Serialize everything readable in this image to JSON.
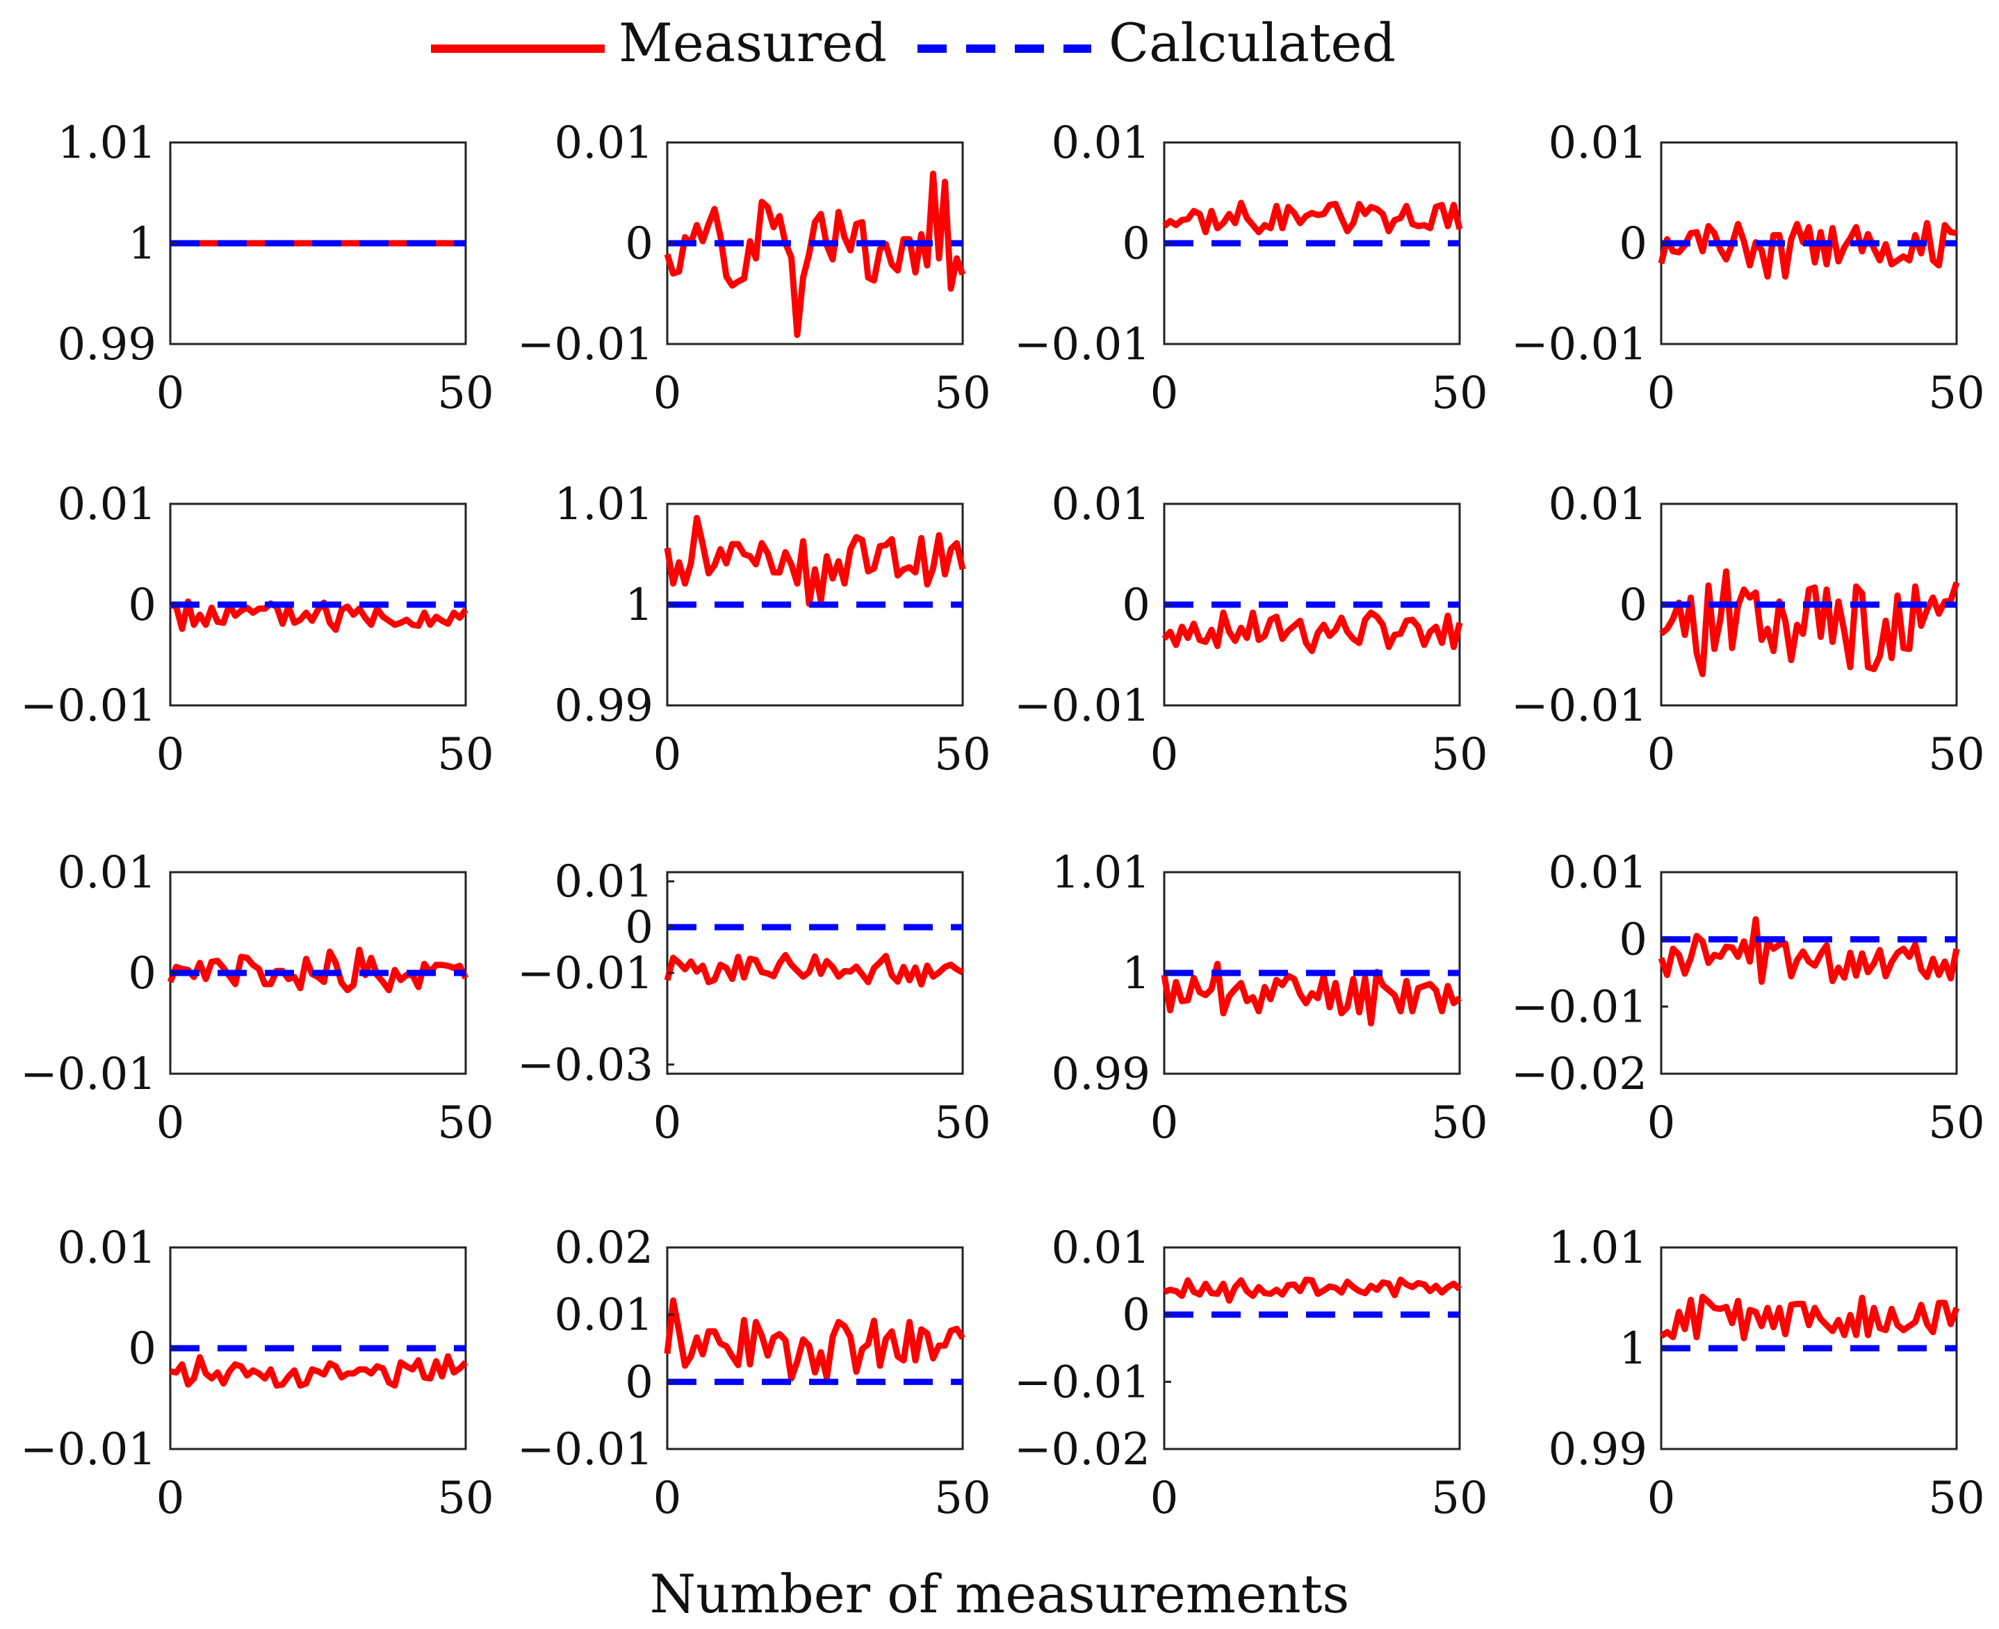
{
  "figure": {
    "xlabel": "Number of measurements",
    "legend": [
      {
        "name": "Measured",
        "color": "#ff0000",
        "style": "solid"
      },
      {
        "name": "Calculated",
        "color": "#0000ff",
        "style": "dashed"
      }
    ]
  },
  "chart_data": [
    {
      "type": "line",
      "xlim": [
        0,
        50
      ],
      "xticks": [
        0,
        50
      ],
      "ylim": [
        0.99,
        1.01
      ],
      "yticks": [
        0.99,
        1,
        1.01
      ],
      "yticklabels": [
        "0.99",
        "1",
        "1.01"
      ],
      "calculated": 1,
      "noise": 0,
      "seed": 1,
      "series": [
        {
          "name": "Measured",
          "values": [
            1,
            1,
            1,
            1,
            1,
            1,
            1,
            1,
            1,
            1,
            1,
            1,
            1,
            1,
            1,
            1,
            1,
            1,
            1,
            1,
            1,
            1,
            1,
            1,
            1,
            1,
            1,
            1,
            1,
            1,
            1,
            1,
            1,
            1,
            1,
            1,
            1,
            1,
            1,
            1,
            1,
            1,
            1,
            1,
            1,
            1,
            1,
            1,
            1,
            1,
            1
          ]
        },
        {
          "name": "Calculated",
          "values": [
            1,
            1
          ]
        }
      ]
    },
    {
      "type": "line",
      "xlim": [
        0,
        50
      ],
      "xticks": [
        0,
        50
      ],
      "ylim": [
        -0.01,
        0.01
      ],
      "yticks": [
        -0.01,
        0,
        0.01
      ],
      "yticklabels": [
        "−0.01",
        "0",
        "0.01"
      ],
      "calculated": 0,
      "noise": 0.0045,
      "seed": 2
    },
    {
      "type": "line",
      "xlim": [
        0,
        50
      ],
      "xticks": [
        0,
        50
      ],
      "ylim": [
        -0.01,
        0.01
      ],
      "yticks": [
        -0.01,
        0,
        0.01
      ],
      "yticklabels": [
        "−0.01",
        "0",
        "0.01"
      ],
      "calculated": 0,
      "base": 0.0025,
      "noise": 0.0015,
      "seed": 3
    },
    {
      "type": "line",
      "xlim": [
        0,
        50
      ],
      "xticks": [
        0,
        50
      ],
      "ylim": [
        -0.01,
        0.01
      ],
      "yticks": [
        -0.01,
        0,
        0.01
      ],
      "yticklabels": [
        "−0.01",
        "0",
        "0.01"
      ],
      "calculated": 0,
      "noise": 0.0022,
      "seed": 4
    },
    {
      "type": "line",
      "xlim": [
        0,
        50
      ],
      "xticks": [
        0,
        50
      ],
      "ylim": [
        -0.01,
        0.01
      ],
      "yticks": [
        -0.01,
        0,
        0.01
      ],
      "yticklabels": [
        "−0.01",
        "0",
        "0.01"
      ],
      "calculated": 0,
      "base": -0.001,
      "noise": 0.0013,
      "seed": 5
    },
    {
      "type": "line",
      "xlim": [
        0,
        50
      ],
      "xticks": [
        0,
        50
      ],
      "ylim": [
        0.99,
        1.01
      ],
      "yticks": [
        0.99,
        1,
        1.01
      ],
      "yticklabels": [
        "0.99",
        "1",
        "1.01"
      ],
      "calculated": 1,
      "base": 1.0045,
      "noise": 0.0025,
      "seed": 6
    },
    {
      "type": "line",
      "xlim": [
        0,
        50
      ],
      "xticks": [
        0,
        50
      ],
      "ylim": [
        -0.01,
        0.01
      ],
      "yticks": [
        -0.01,
        0,
        0.01
      ],
      "yticklabels": [
        "−0.01",
        "0",
        "0.01"
      ],
      "calculated": 0,
      "base": -0.0025,
      "noise": 0.0018,
      "seed": 7
    },
    {
      "type": "line",
      "xlim": [
        0,
        50
      ],
      "xticks": [
        0,
        50
      ],
      "ylim": [
        -0.01,
        0.01
      ],
      "yticks": [
        -0.01,
        0,
        0.01
      ],
      "yticklabels": [
        "−0.01",
        "0",
        "0.01"
      ],
      "calculated": 0,
      "base": -0.002,
      "noise": 0.0045,
      "seed": 8
    },
    {
      "type": "line",
      "xlim": [
        0,
        50
      ],
      "xticks": [
        0,
        50
      ],
      "ylim": [
        -0.01,
        0.01
      ],
      "yticks": [
        -0.01,
        0,
        0.01
      ],
      "yticklabels": [
        "−0.01",
        "0",
        "0.01"
      ],
      "calculated": 0,
      "base": 0,
      "noise": 0.0016,
      "seed": 9
    },
    {
      "type": "line",
      "xlim": [
        0,
        50
      ],
      "xticks": [
        0,
        50
      ],
      "ylim": [
        -0.032,
        0.012
      ],
      "yticks": [
        -0.03,
        -0.01,
        0,
        0.01
      ],
      "yticklabels": [
        "−0.03",
        "−0.01",
        "0",
        "0.01"
      ],
      "calculated": 0,
      "base": -0.009,
      "noise": 0.003,
      "seed": 10
    },
    {
      "type": "line",
      "xlim": [
        0,
        50
      ],
      "xticks": [
        0,
        50
      ],
      "ylim": [
        0.99,
        1.01
      ],
      "yticks": [
        0.99,
        1,
        1.01
      ],
      "yticklabels": [
        "0.99",
        "1",
        "1.01"
      ],
      "calculated": 1,
      "base": 0.998,
      "noise": 0.0022,
      "seed": 11
    },
    {
      "type": "line",
      "xlim": [
        0,
        50
      ],
      "xticks": [
        0,
        50
      ],
      "ylim": [
        -0.02,
        0.01
      ],
      "yticks": [
        -0.02,
        -0.01,
        0,
        0.01
      ],
      "yticklabels": [
        "−0.02",
        "−0.01",
        "0",
        "0.01"
      ],
      "calculated": 0,
      "base": -0.003,
      "noise": 0.0035,
      "seed": 12
    },
    {
      "type": "line",
      "xlim": [
        0,
        50
      ],
      "xticks": [
        0,
        50
      ],
      "ylim": [
        -0.01,
        0.01
      ],
      "yticks": [
        -0.01,
        0,
        0.01
      ],
      "yticklabels": [
        "−0.01",
        "0",
        "0.01"
      ],
      "calculated": 0,
      "base": -0.0025,
      "noise": 0.0012,
      "seed": 13
    },
    {
      "type": "line",
      "xlim": [
        0,
        50
      ],
      "xticks": [
        0,
        50
      ],
      "ylim": [
        -0.01,
        0.02
      ],
      "yticks": [
        -0.01,
        0,
        0.01,
        0.02
      ],
      "yticklabels": [
        "−0.01",
        "0",
        "0.01",
        "0.02"
      ],
      "calculated": 0,
      "base": 0.005,
      "noise": 0.0045,
      "seed": 14
    },
    {
      "type": "line",
      "xlim": [
        0,
        50
      ],
      "xticks": [
        0,
        50
      ],
      "ylim": [
        -0.02,
        0.01
      ],
      "yticks": [
        -0.02,
        -0.01,
        0,
        0.01
      ],
      "yticklabels": [
        "−0.02",
        "−0.01",
        "0",
        "0.01"
      ],
      "calculated": 0,
      "base": 0.004,
      "noise": 0.0012,
      "seed": 15
    },
    {
      "type": "line",
      "xlim": [
        0,
        50
      ],
      "xticks": [
        0,
        50
      ],
      "ylim": [
        0.99,
        1.01
      ],
      "yticks": [
        0.99,
        1,
        1.01
      ],
      "yticklabels": [
        "0.99",
        "1",
        "1.01"
      ],
      "calculated": 1,
      "base": 1.003,
      "noise": 0.0022,
      "seed": 16
    }
  ]
}
